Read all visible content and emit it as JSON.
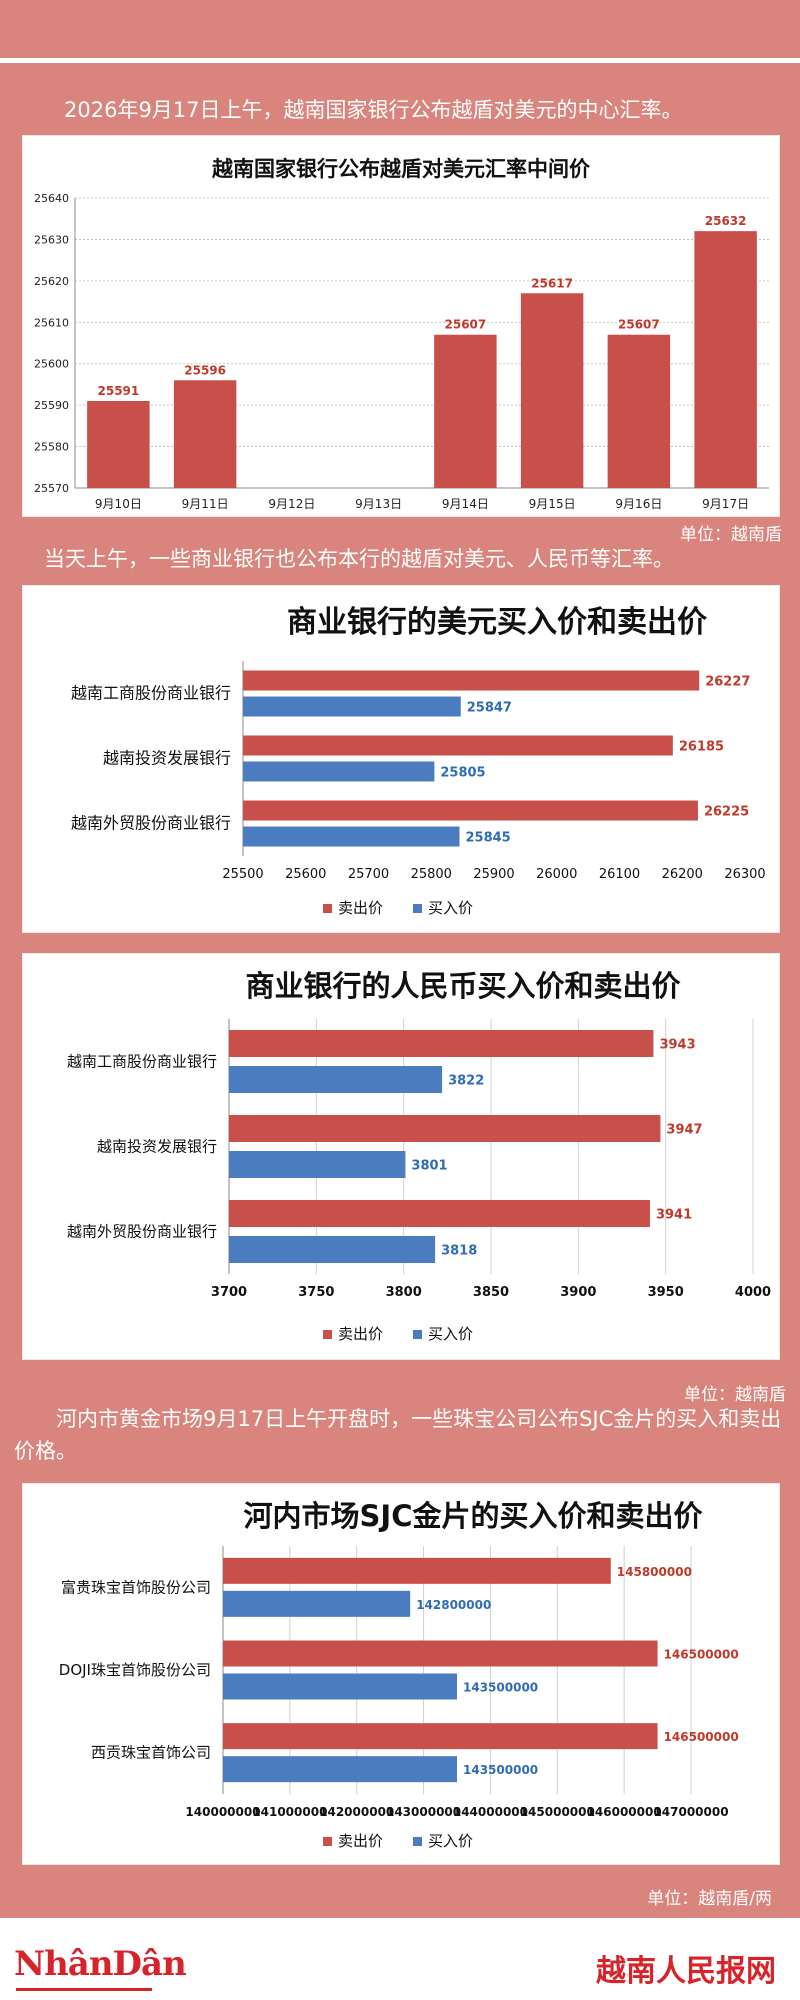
{
  "intro_1": "2026年9月17日上午，越南国家银行公布越盾对美元的中心汇率。",
  "intro_2": "当天上午，一些商业银行也公布本行的越盾对美元、人民币等汇率。",
  "intro_3": "河内市黄金市场9月17日上午开盘时，一些珠宝公司公布SJC金片的买入和卖出价格。",
  "unit_1": "单位：越南盾",
  "unit_2": "单位：越南盾",
  "unit_3": "单位：越南盾/两",
  "footer": {
    "logo_left": "NhânDân",
    "logo_right": "越南人民报网"
  },
  "colors": {
    "sell": "#c9504a",
    "buy": "#4c7cc0",
    "bg": "#d9847c"
  },
  "chart_data": [
    {
      "type": "bar",
      "title": "越南国家银行公布越盾对美元汇率中间价",
      "categories": [
        "9月10日",
        "9月11日",
        "9月12日",
        "9月13日",
        "9月14日",
        "9月15日",
        "9月16日",
        "9月17日"
      ],
      "values": [
        25591,
        25596,
        null,
        null,
        25607,
        25617,
        25607,
        25632
      ],
      "ylim": [
        25570,
        25640
      ],
      "yticks": [
        25570,
        25580,
        25590,
        25600,
        25610,
        25620,
        25630,
        25640
      ],
      "grid": true
    },
    {
      "type": "bar",
      "orientation": "horizontal",
      "title": "商业银行的美元买入价和卖出价",
      "categories": [
        "越南工商股份商业银行",
        "越南投资发展银行",
        "越南外贸股份商业银行"
      ],
      "series": [
        {
          "name": "卖出价",
          "values": [
            26227,
            26185,
            26225
          ]
        },
        {
          "name": "买入价",
          "values": [
            25847,
            25805,
            25845
          ]
        }
      ],
      "xlim": [
        25500,
        26300
      ],
      "xticks": [
        25500,
        25600,
        25700,
        25800,
        25900,
        26000,
        26100,
        26200,
        26300
      ],
      "legend": "bottom",
      "grid": false
    },
    {
      "type": "bar",
      "orientation": "horizontal",
      "title": "商业银行的人民币买入价和卖出价",
      "categories": [
        "越南工商股份商业银行",
        "越南投资发展银行",
        "越南外贸股份商业银行"
      ],
      "series": [
        {
          "name": "卖出价",
          "values": [
            3943,
            3947,
            3941
          ]
        },
        {
          "name": "买入价",
          "values": [
            3822,
            3801,
            3818
          ]
        }
      ],
      "xlim": [
        3700,
        4000
      ],
      "xticks": [
        3700,
        3750,
        3800,
        3850,
        3900,
        3950,
        4000
      ],
      "legend": "bottom",
      "grid": true
    },
    {
      "type": "bar",
      "orientation": "horizontal",
      "title": "河内市场SJC金片的买入价和卖出价",
      "categories": [
        "富贵珠宝首饰股份公司",
        "DOJI珠宝首饰股份公司",
        "西贡珠宝首饰公司"
      ],
      "series": [
        {
          "name": "卖出价",
          "values": [
            145800000,
            146500000,
            146500000
          ]
        },
        {
          "name": "买入价",
          "values": [
            142800000,
            143500000,
            143500000
          ]
        }
      ],
      "xlim": [
        140000000,
        147000000
      ],
      "xticks": [
        140000000,
        141000000,
        142000000,
        143000000,
        144000000,
        145000000,
        146000000,
        147000000
      ],
      "legend": "bottom",
      "grid": true
    }
  ]
}
